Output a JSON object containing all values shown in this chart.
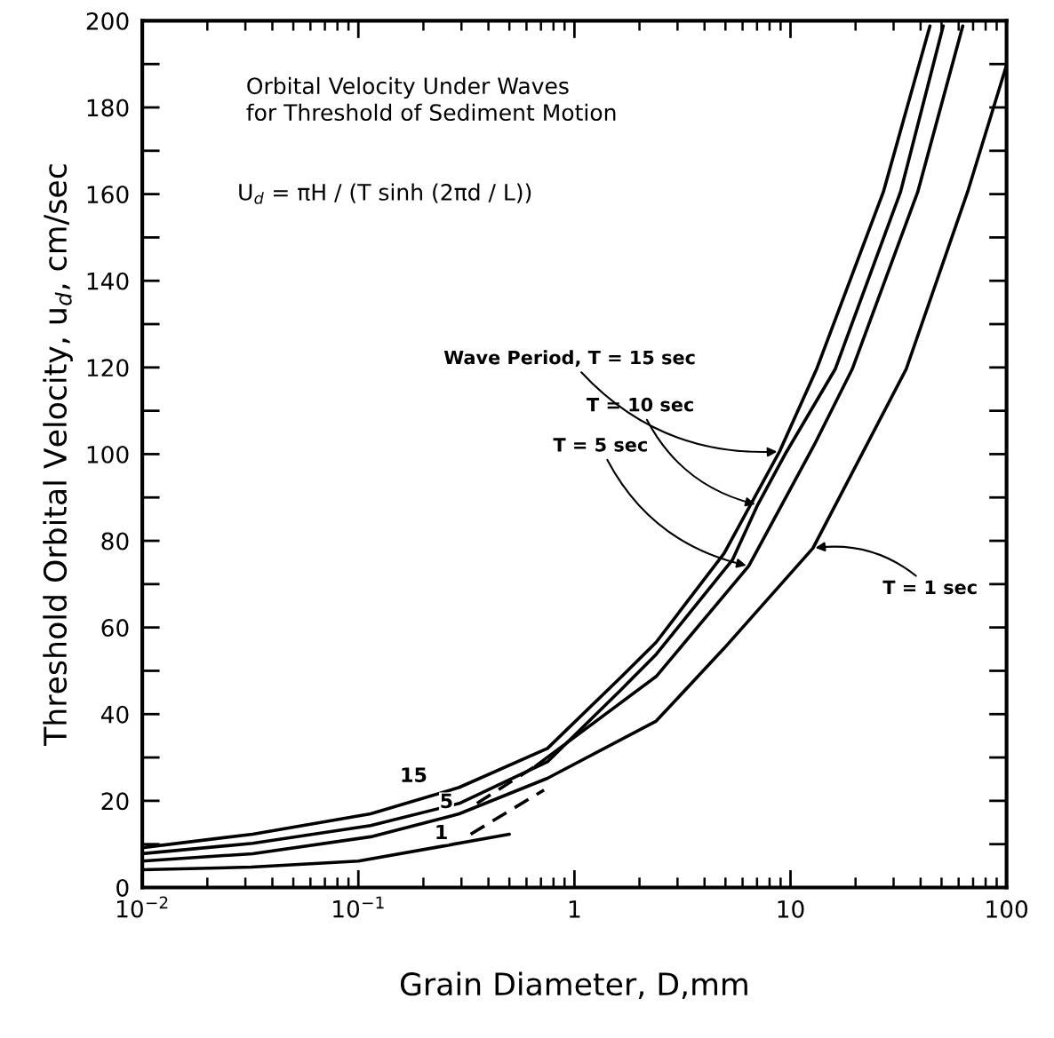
{
  "chart_data": {
    "type": "line",
    "title": "Orbital Velocity Under Waves\nfor Threshold of Sediment Motion",
    "xlabel": "Grain Diameter, D,mm",
    "ylabel": "Threshold Orbital Velocity, u$_{d}$, cm/sec",
    "log": "x",
    "grid": false,
    "marker": "none",
    "xlim": [
      0.01,
      100
    ],
    "ylim": [
      0,
      200
    ],
    "xticks": [
      {
        "value": 0.01,
        "label": "10$^{−2}$"
      },
      {
        "value": 0.1,
        "label": "10$^{−1}$"
      },
      1,
      10,
      100
    ],
    "yticks": [
      0,
      20,
      40,
      60,
      80,
      100,
      120,
      140,
      160,
      180,
      200
    ],
    "series": [
      {
        "color": "#000000",
        "line_style": "solid",
        "x": [
          0.01,
          0.0324,
          0.114,
          0.293,
          0.75,
          1.64,
          2.39,
          4.93,
          8.9,
          13.2,
          26.9,
          44.2
        ],
        "values": [
          9.2,
          12.3,
          17.0,
          23.1,
          32.1,
          48.5,
          56.6,
          77.1,
          100.6,
          119.6,
          160.5,
          198.8
        ]
      },
      {
        "color": "#000000",
        "line_style": "solid",
        "x": [
          0.01,
          0.0324,
          0.114,
          0.293,
          0.75,
          1.64,
          2.39,
          5.4,
          7.05,
          9.5,
          16.1,
          32.3,
          50.9
        ],
        "values": [
          7.8,
          10.2,
          14.3,
          19.4,
          29.0,
          45.6,
          53.8,
          75.7,
          88.3,
          100.2,
          119.6,
          160.5,
          198.8
        ]
      },
      {
        "color": "#000000",
        "line_style": "solid",
        "x": [
          0.66,
          2.39,
          6.41,
          12.9,
          19.3,
          38.8,
          62.7
        ],
        "values": [
          28.0,
          48.7,
          74.2,
          102.2,
          119.6,
          160.5,
          198.8
        ]
      },
      {
        "color": "#000000",
        "line_style": "solid",
        "x": [
          0.01,
          0.0324,
          0.114,
          0.293,
          0.75,
          2.39,
          4.93,
          12.7,
          34.3,
          66,
          100
        ],
        "values": [
          6.1,
          7.8,
          11.7,
          17.0,
          25.2,
          38.4,
          55.2,
          78.3,
          119.6,
          160.5,
          189.8
        ]
      },
      {
        "color": "#000000",
        "line_style": "solid",
        "x": [
          0.01,
          0.032,
          0.1,
          0.25,
          0.5
        ],
        "values": [
          4.1,
          4.7,
          6.1,
          9.6,
          12.3
        ]
      },
      {
        "color": "#000000",
        "line_style": "dashed",
        "x": [
          0.354,
          0.66
        ],
        "values": [
          19.4,
          28.0
        ]
      },
      {
        "color": "#000000",
        "line_style": "dashed",
        "x": [
          0.331,
          0.723
        ],
        "values": [
          12.3,
          22.5
        ]
      }
    ],
    "annotations": [
      "U$_{d}$ = πH / (T sinh (2πd / L))",
      {
        "text": "Wave Period, T = 15 sec",
        "x": 8.9,
        "y": 100.6
      },
      {
        "text": "T = 10 sec",
        "x": 7.05,
        "y": 88.3
      },
      {
        "text": "T = 5 sec",
        "x": 6.41,
        "y": 74.2
      },
      {
        "text": "T = 1 sec",
        "x": 12.7,
        "y": 78.3
      },
      "15",
      "5",
      "1"
    ]
  }
}
